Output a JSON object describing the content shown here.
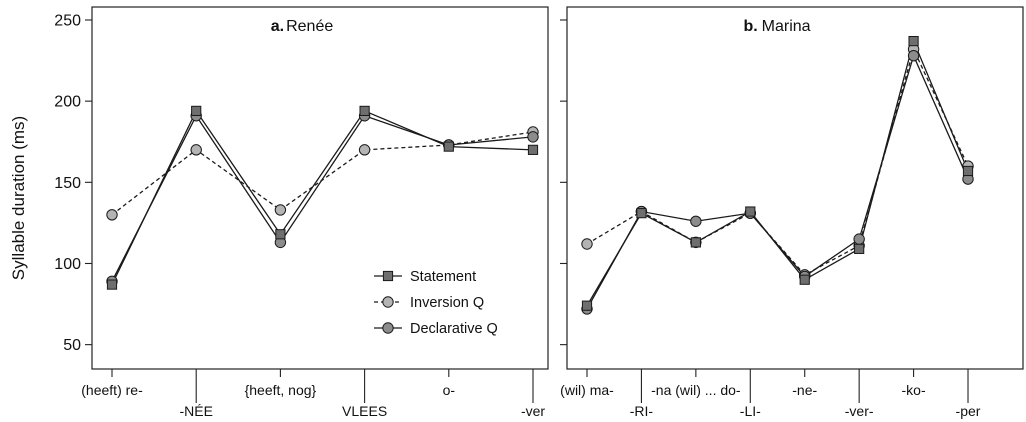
{
  "figure": {
    "ylabel": "Syllable duration (ms)"
  },
  "chart_data": [
    {
      "type": "line",
      "panel_letter": "a.",
      "title": "Renée",
      "categories": [
        "(heeft) re-",
        "-NÉE",
        "{heeft, nog}",
        "VLEES",
        "o-",
        "-ver"
      ],
      "ylabel": "Syllable duration (ms)",
      "ylim": [
        35,
        258
      ],
      "yticks": [
        50,
        100,
        150,
        200,
        250
      ],
      "legend": {
        "position": "lower-right",
        "entries": [
          "Statement",
          "Inversion Q",
          "Declarative Q"
        ]
      },
      "series": [
        {
          "name": "Statement",
          "values": [
            87,
            194,
            118,
            194,
            172,
            170
          ]
        },
        {
          "name": "Inversion Q",
          "values": [
            130,
            170,
            133,
            170,
            173,
            181
          ]
        },
        {
          "name": "Declarative Q",
          "values": [
            89,
            191,
            113,
            191,
            173,
            178
          ]
        }
      ]
    },
    {
      "type": "line",
      "panel_letter": "b.",
      "title": "Marina",
      "categories": [
        "(wil) ma-",
        "-RI-",
        "-na (wil) ... do-",
        "-LI-",
        "-ne-",
        "-ver-",
        "-ko-",
        "-per"
      ],
      "ylim": [
        35,
        258
      ],
      "series": [
        {
          "name": "Statement",
          "values": [
            74,
            131,
            113,
            132,
            90,
            109,
            237,
            157
          ]
        },
        {
          "name": "Inversion Q",
          "values": [
            112,
            132,
            113,
            131,
            93,
            111,
            232,
            160
          ]
        },
        {
          "name": "Declarative Q",
          "values": [
            72,
            132,
            126,
            131,
            92,
            115,
            228,
            152
          ]
        }
      ]
    }
  ],
  "colors": {
    "statement_fill": "#6e6e6e",
    "inversion_fill": "#b4b4b4",
    "declarative_fill": "#8c8c8c",
    "line": "#1a1a1a",
    "axis": "#222222"
  }
}
